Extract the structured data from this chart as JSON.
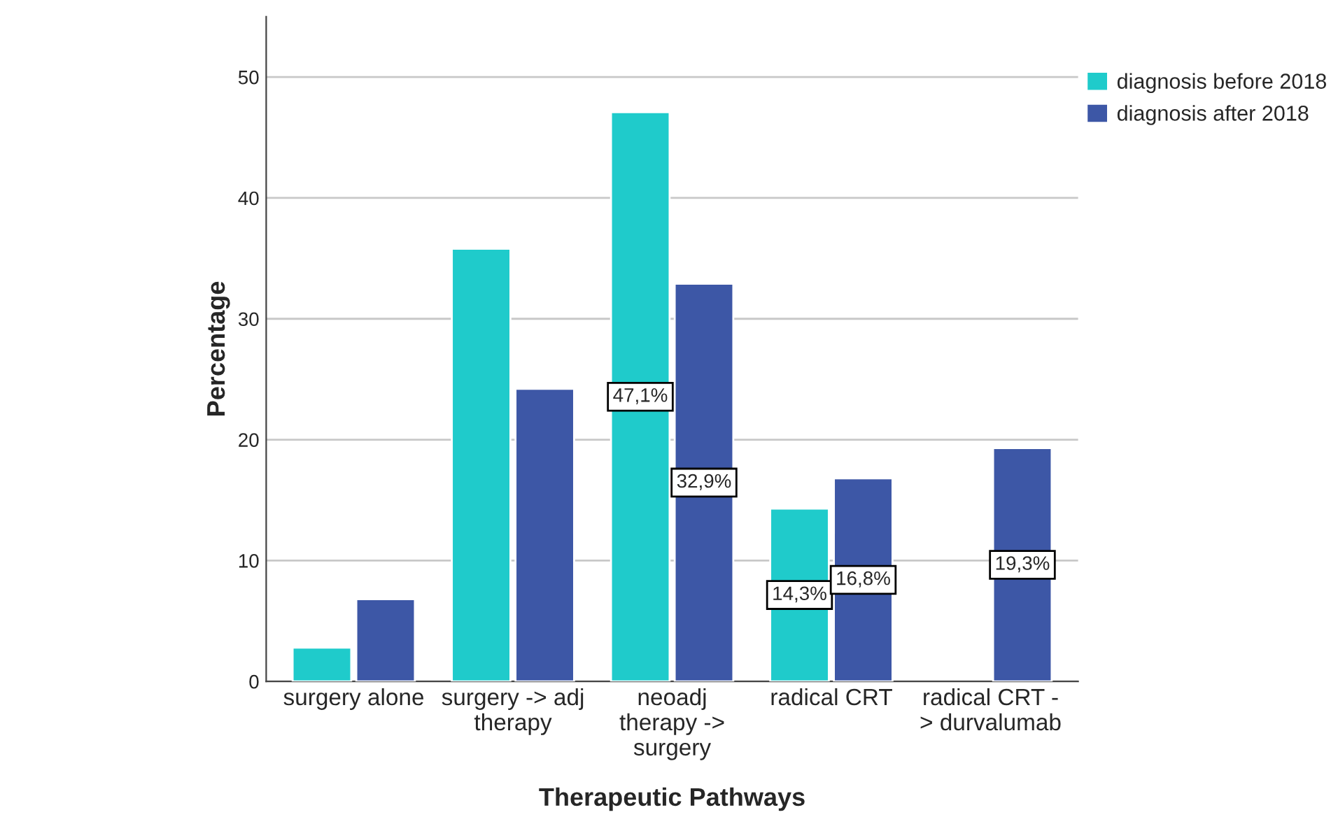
{
  "chart_data": {
    "type": "bar",
    "xlabel": "Therapeutic Pathways",
    "ylabel": "Percentage",
    "categories": [
      "surgery alone",
      "surgery -> adj\ntherapy",
      "neoadj\ntherapy ->\nsurgery",
      "radical CRT",
      "radical CRT -\n> durvalumab"
    ],
    "series": [
      {
        "name": "diagnosis before 2018",
        "color": "#1fcbcb",
        "values": [
          2.8,
          35.8,
          47.1,
          14.3,
          null
        ],
        "value_labels": [
          null,
          null,
          "47,1%",
          "14,3%",
          null
        ]
      },
      {
        "name": "diagnosis after 2018",
        "color": "#3d57a6",
        "values": [
          6.8,
          24.2,
          32.9,
          16.8,
          19.3
        ],
        "value_labels": [
          null,
          null,
          "32,9%",
          "16,8%",
          "19,3%"
        ]
      }
    ],
    "ylim": [
      0,
      55
    ],
    "yticks": [
      0,
      10,
      20,
      30,
      40,
      50
    ],
    "grid": "y",
    "legend": "top right"
  }
}
